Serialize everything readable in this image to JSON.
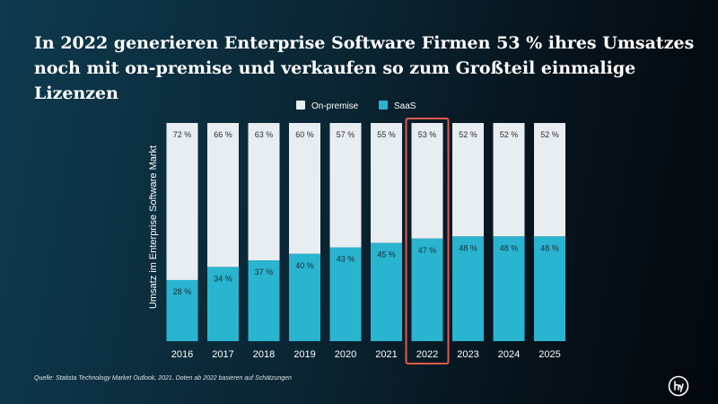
{
  "title": "In 2022 generieren Enterprise Software Firmen 53 % ihres Umsatzes noch mit on-premise und verkaufen so zum Großteil einmalige Lizenzen",
  "source": "Quelle: Statista Technology Market Outlook, 2021. Doten ab 2022 basieren auf Schätzungen",
  "chart_data": {
    "type": "bar",
    "stacked": true,
    "categories": [
      "2016",
      "2017",
      "2018",
      "2019",
      "2020",
      "2021",
      "2022",
      "2023",
      "2024",
      "2025"
    ],
    "series": [
      {
        "name": "SaaS",
        "values": [
          28,
          34,
          37,
          40,
          43,
          45,
          47,
          48,
          48,
          48
        ],
        "color": "#29b4d0"
      },
      {
        "name": "On-premise",
        "values": [
          72,
          66,
          63,
          60,
          57,
          55,
          53,
          52,
          52,
          52
        ],
        "color": "#e8edf1"
      }
    ],
    "value_suffix": " %",
    "ylabel": "Umsatz im Enterprise Software Markt",
    "xlabel": "",
    "ylim": [
      0,
      100
    ],
    "legend_position": "top",
    "highlight_category": "2022",
    "highlight_color": "#e05a4e"
  }
}
